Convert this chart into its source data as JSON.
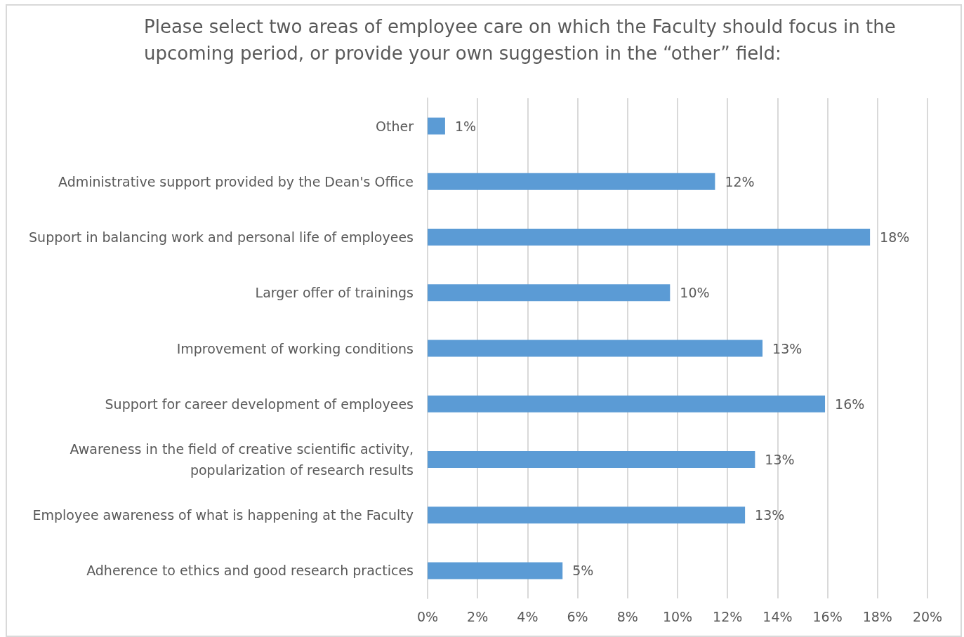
{
  "chart_data": {
    "type": "bar",
    "orientation": "horizontal",
    "title": "Please select two areas of employee care on which the Faculty should focus in the\nupcoming period, or provide your own suggestion in the “other” field:",
    "categories": [
      "Other",
      "Administrative support provided by the Dean's Office",
      "Support in balancing work and personal life of employees",
      "Larger offer of trainings",
      "Improvement of working conditions",
      "Support for career development of employees",
      "Awareness in the field of creative scientific activity,\npopularization of research results",
      "Employee awareness of what is happening at the Faculty",
      "Adherence to ethics and good research practices"
    ],
    "values": [
      0.7,
      11.5,
      17.7,
      9.7,
      13.4,
      15.9,
      13.1,
      12.7,
      5.4
    ],
    "value_labels": [
      "1%",
      "12%",
      "18%",
      "10%",
      "13%",
      "16%",
      "13%",
      "13%",
      "5%"
    ],
    "color": "#5b9bd5",
    "xlim": [
      0,
      20
    ],
    "xticks": [
      {
        "value": 0,
        "label": "0%"
      },
      {
        "value": 2,
        "label": "2%"
      },
      {
        "value": 4,
        "label": "4%"
      },
      {
        "value": 6,
        "label": "6%"
      },
      {
        "value": 8,
        "label": "8%"
      },
      {
        "value": 10,
        "label": "10%"
      },
      {
        "value": 12,
        "label": "12%"
      },
      {
        "value": 14,
        "label": "14%"
      },
      {
        "value": 16,
        "label": "16%"
      },
      {
        "value": 18,
        "label": "18%"
      },
      {
        "value": 20,
        "label": "20%"
      }
    ],
    "grid": "x"
  }
}
